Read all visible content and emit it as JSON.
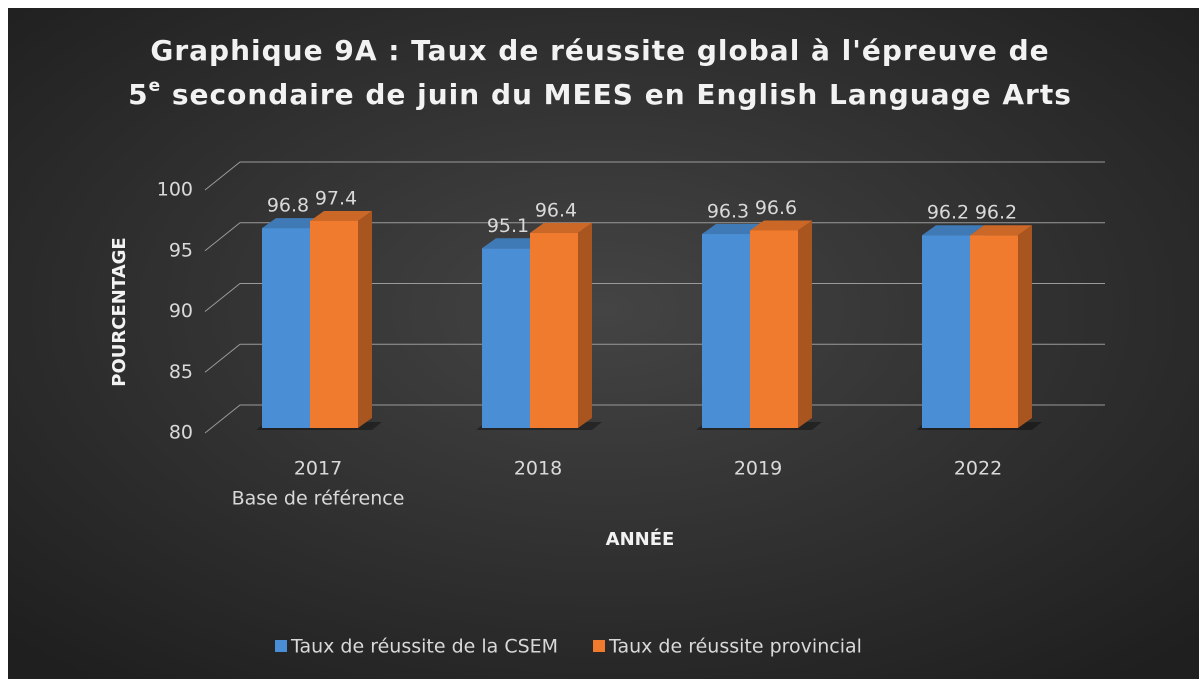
{
  "chart_data": {
    "type": "bar3d",
    "title": [
      "Graphique 9A : Taux de réussite global à l'épreuve de",
      "5",
      "e",
      " secondaire de juin du MEES en English Language Arts"
    ],
    "x_label": "ANNÉE",
    "y_label": "POURCENTAGE",
    "categories": [
      [
        "2017",
        "Base de référence"
      ],
      [
        "2018"
      ],
      [
        "2019"
      ],
      [
        "2022"
      ]
    ],
    "series": [
      {
        "name": "Taux de réussite de la CSEM",
        "color": "#4a8fd6",
        "values": [
          96.8,
          95.1,
          96.3,
          96.2
        ]
      },
      {
        "name": "Taux de réussite provincial",
        "color": "#f07a2e",
        "values": [
          97.4,
          96.4,
          96.6,
          96.2
        ]
      }
    ],
    "ylim": [
      80,
      100
    ],
    "yticks": [
      80,
      85,
      90,
      95,
      100
    ],
    "grid": true,
    "legend": "bottom"
  }
}
